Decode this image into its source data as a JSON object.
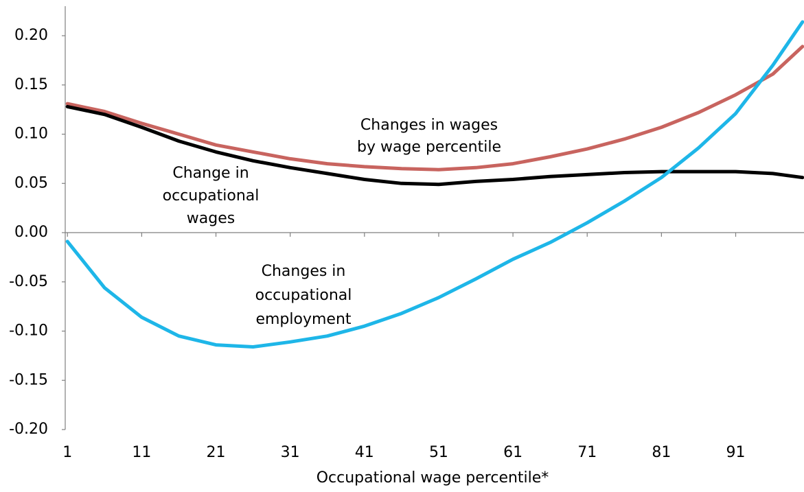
{
  "chart_data": {
    "type": "line",
    "x": [
      1,
      6,
      11,
      16,
      21,
      26,
      31,
      36,
      41,
      46,
      51,
      56,
      61,
      66,
      71,
      76,
      81,
      86,
      91,
      96,
      100
    ],
    "series": [
      {
        "color": "#c8645f",
        "values": [
          0.131,
          0.123,
          0.111,
          0.1,
          0.089,
          0.082,
          0.075,
          0.07,
          0.067,
          0.065,
          0.064,
          0.066,
          0.07,
          0.077,
          0.085,
          0.095,
          0.107,
          0.122,
          0.14,
          0.161,
          0.189
        ]
      },
      {
        "color": "#000000",
        "values": [
          0.128,
          0.12,
          0.107,
          0.093,
          0.082,
          0.073,
          0.066,
          0.06,
          0.054,
          0.05,
          0.049,
          0.052,
          0.054,
          0.057,
          0.059,
          0.061,
          0.062,
          0.062,
          0.062,
          0.06,
          0.056
        ]
      },
      {
        "color": "#1eb6e8",
        "values": [
          -0.009,
          -0.056,
          -0.086,
          -0.105,
          -0.114,
          -0.116,
          -0.111,
          -0.105,
          -0.095,
          -0.082,
          -0.066,
          -0.047,
          -0.027,
          -0.01,
          0.01,
          0.032,
          0.056,
          0.086,
          0.121,
          0.17,
          0.214
        ]
      }
    ],
    "xlim": [
      0.7,
      100.2
    ],
    "xticks": [
      1,
      11,
      21,
      31,
      41,
      51,
      61,
      71,
      81,
      91
    ],
    "ylim": [
      -0.2,
      0.23
    ],
    "yticks": [
      {
        "value": 0.2,
        "label": "0.20"
      },
      0.15,
      {
        "value": 0.1,
        "label": "0.10"
      },
      0.05,
      {
        "value": 0,
        "label": "0.00"
      },
      -0.05,
      {
        "value": -0.1,
        "label": "-0.10"
      },
      -0.15,
      {
        "value": -0.2,
        "label": "-0.20"
      }
    ],
    "xlabel": "Occupational wage percentile*",
    "annotations": [
      {
        "lines": [
          "Changes in wages",
          "by wage percentile"
        ]
      },
      {
        "lines": [
          "Change in",
          "occupational",
          "wages"
        ]
      },
      {
        "lines": [
          "Changes in",
          "occupational",
          "employment"
        ]
      }
    ]
  }
}
